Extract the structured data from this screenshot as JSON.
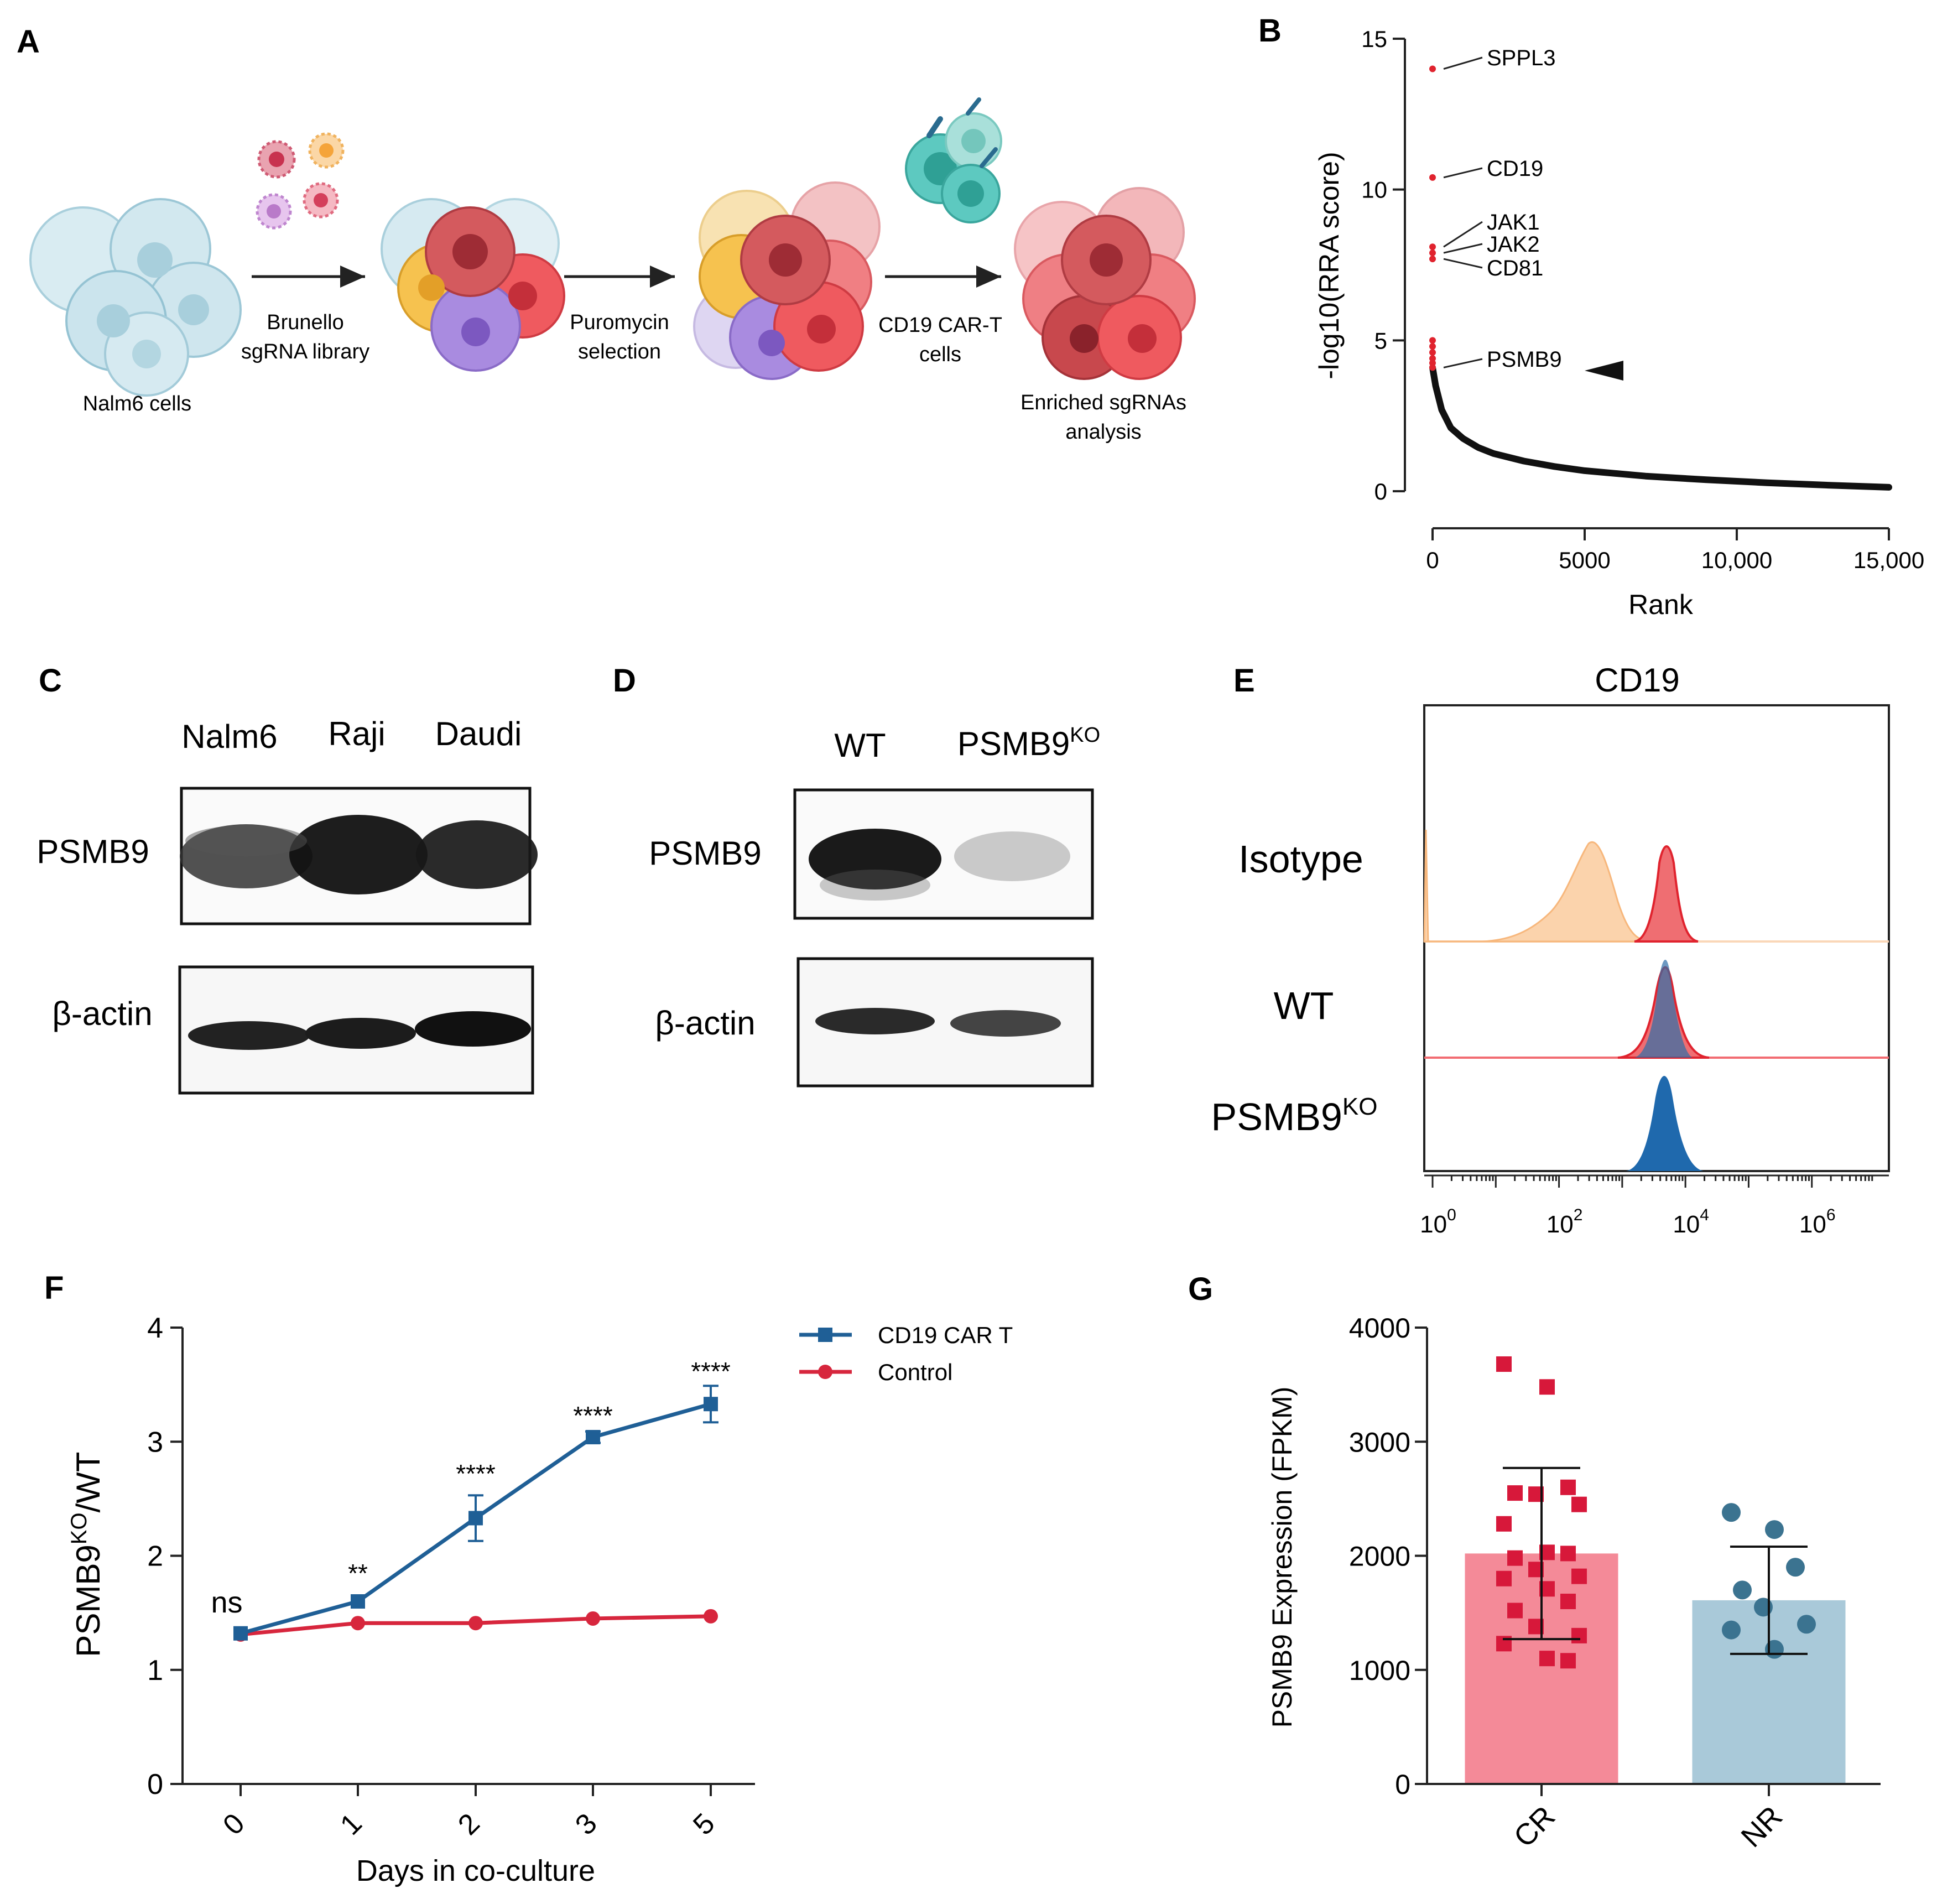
{
  "panels": {
    "a": {
      "letter": "A",
      "steps": {
        "cells": "Nalm6 cells",
        "library": [
          "Brunello",
          "sgRNA library"
        ],
        "selection": [
          "Puromycin",
          "selection"
        ],
        "cart": [
          "CD19 CAR-T",
          "cells"
        ],
        "analysis": [
          "Enriched sgRNAs",
          "analysis"
        ]
      }
    },
    "b": {
      "letter": "B"
    },
    "c": {
      "letter": "C",
      "lanes": [
        "Nalm6",
        "Raji",
        "Daudi"
      ],
      "rows": [
        "PSMB9",
        "β-actin"
      ]
    },
    "d": {
      "letter": "D",
      "lane_wt": "WT",
      "lane_ko": "PSMB9",
      "lane_ko_sup": "KO",
      "rows": [
        "PSMB9",
        "β-actin"
      ]
    },
    "e": {
      "letter": "E",
      "title": "CD19",
      "isotype": "Isotype",
      "wt": "WT",
      "ko": "PSMB9",
      "ko_sup": "KO",
      "x_base": "10",
      "x_exponents": [
        "0",
        "2",
        "4",
        "6"
      ]
    },
    "f": {
      "letter": "F"
    },
    "g": {
      "letter": "G"
    }
  },
  "chart_data": [
    {
      "id": "B",
      "type": "scatter",
      "xlabel": "Rank",
      "ylabel": "-log10(RRA score)",
      "xlim": [
        0,
        15000
      ],
      "ylim": [
        0,
        15
      ],
      "xticks": [
        0,
        5000,
        10000,
        15000
      ],
      "xtick_labels": [
        "0",
        "5000",
        "10,000",
        "15,000"
      ],
      "yticks": [
        0,
        5,
        10,
        15
      ],
      "ytick_labels": [
        "0",
        "5",
        "10",
        "15"
      ],
      "highlighted": [
        {
          "gene": "SPPL3",
          "rank": 1,
          "value": 14.0
        },
        {
          "gene": "CD19",
          "rank": 2,
          "value": 10.4
        },
        {
          "gene": "JAK1",
          "rank": 3,
          "value": 8.1
        },
        {
          "gene": "JAK2",
          "rank": 4,
          "value": 7.9
        },
        {
          "gene": "CD81",
          "rank": 5,
          "value": 7.7
        },
        {
          "gene": "PSMB9",
          "rank": 10,
          "value": 4.1
        }
      ],
      "top_points": [
        5.0,
        4.8,
        4.6,
        4.4,
        4.25
      ],
      "curve": [
        [
          0,
          4.1
        ],
        [
          100,
          3.5
        ],
        [
          300,
          2.7
        ],
        [
          600,
          2.1
        ],
        [
          1000,
          1.75
        ],
        [
          1500,
          1.45
        ],
        [
          2000,
          1.25
        ],
        [
          3000,
          1.0
        ],
        [
          4000,
          0.82
        ],
        [
          5000,
          0.68
        ],
        [
          7000,
          0.5
        ],
        [
          9000,
          0.38
        ],
        [
          11000,
          0.28
        ],
        [
          13000,
          0.2
        ],
        [
          15000,
          0.13
        ]
      ]
    },
    {
      "id": "F",
      "type": "line",
      "xlabel": "Days in co-culture",
      "ylabel": "PSMB9",
      "ylabel_sup": "KO",
      "ylabel_tail": "/WT",
      "categories": [
        "0",
        "1",
        "2",
        "3",
        "5"
      ],
      "ylim": [
        0,
        4
      ],
      "yticks": [
        "0",
        "1",
        "2",
        "3",
        "4"
      ],
      "series": [
        {
          "name": "CD19 CAR T",
          "color": "#1f5f96",
          "marker": "square",
          "values": [
            1.32,
            1.6,
            2.33,
            3.04,
            3.33
          ],
          "errors": [
            0.03,
            0.03,
            0.2,
            0.05,
            0.16
          ]
        },
        {
          "name": "Control",
          "color": "#d7263d",
          "marker": "circle",
          "values": [
            1.31,
            1.41,
            1.41,
            1.45,
            1.47
          ],
          "errors": [
            0,
            0,
            0,
            0,
            0
          ]
        }
      ],
      "significance": [
        "ns",
        "**",
        "****",
        "****",
        "****"
      ]
    },
    {
      "id": "G",
      "type": "bar",
      "ylabel": "PSMB9 Expression (FPKM)",
      "categories": [
        "CR",
        "NR"
      ],
      "values": [
        2020,
        1610
      ],
      "sd": [
        750,
        470
      ],
      "ylim": [
        0,
        4000
      ],
      "yticks": [
        "0",
        "1000",
        "2000",
        "3000",
        "4000"
      ],
      "colors": [
        "#f48a98",
        "#a9c9d9"
      ],
      "marker_colors": [
        "#d7183a",
        "#3b7390"
      ],
      "points": {
        "CR": [
          3680,
          3480,
          2600,
          2550,
          2540,
          2450,
          2280,
          2030,
          2020,
          1980,
          1880,
          1820,
          1800,
          1710,
          1600,
          1520,
          1380,
          1300,
          1230,
          1100,
          1080
        ],
        "NR": [
          2380,
          2230,
          1900,
          1700,
          1550,
          1400,
          1350,
          1180
        ]
      }
    }
  ]
}
